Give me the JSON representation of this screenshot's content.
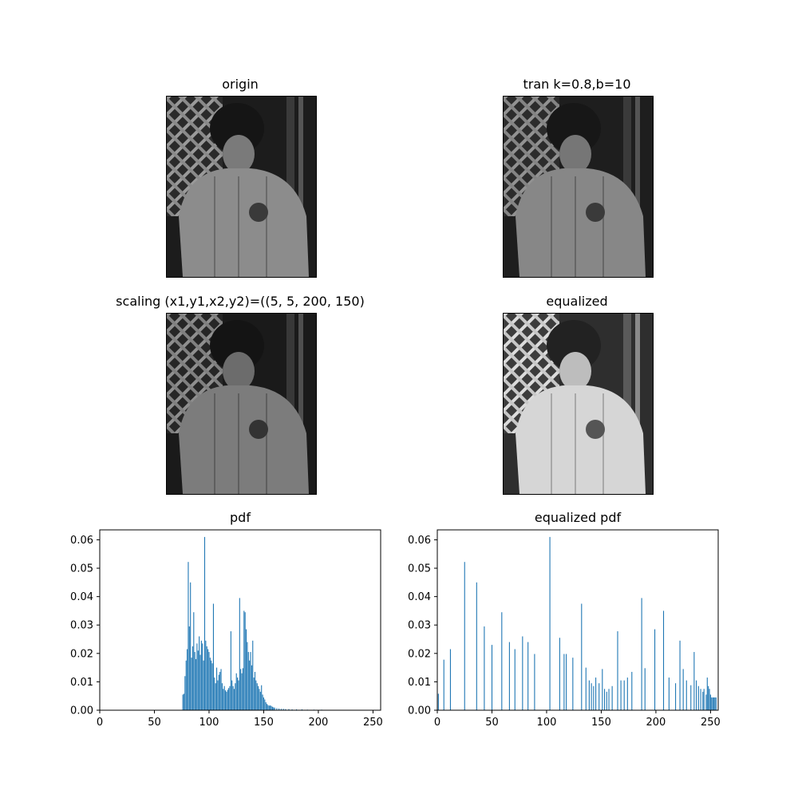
{
  "images": [
    {
      "title": "origin",
      "tone": "normal"
    },
    {
      "title": "tran k=0.8,b=10",
      "tone": "normal"
    },
    {
      "title": "scaling  (x1,y1,x2,y2)=((5, 5, 200, 150)",
      "tone": "normal"
    },
    {
      "title": "equalized",
      "tone": "bright"
    }
  ],
  "chart_data": [
    {
      "type": "bar",
      "title": "pdf",
      "xlim": [
        0,
        257
      ],
      "ylim": [
        0,
        0.0635
      ],
      "xticks": [
        0,
        50,
        100,
        150,
        200,
        250
      ],
      "yticks": [
        "0.00",
        "0.01",
        "0.02",
        "0.03",
        "0.04",
        "0.05",
        "0.06"
      ],
      "bar_color": "#1f77b4",
      "x": [
        76,
        77,
        78,
        79,
        80,
        81,
        82,
        83,
        84,
        85,
        86,
        87,
        88,
        89,
        90,
        91,
        92,
        93,
        94,
        95,
        96,
        97,
        98,
        99,
        100,
        101,
        102,
        103,
        104,
        105,
        106,
        107,
        108,
        109,
        110,
        111,
        112,
        113,
        114,
        115,
        116,
        117,
        118,
        119,
        120,
        121,
        122,
        123,
        124,
        125,
        126,
        127,
        128,
        129,
        130,
        131,
        132,
        133,
        134,
        135,
        136,
        137,
        138,
        139,
        140,
        141,
        142,
        143,
        144,
        145,
        146,
        147,
        148,
        149,
        150,
        151,
        152,
        153,
        154,
        155,
        156,
        157,
        158,
        159,
        160,
        162,
        164,
        166,
        168,
        170,
        173,
        176,
        180,
        185,
        190,
        196,
        203
      ],
      "values": [
        0.0055,
        0.0058,
        0.012,
        0.0175,
        0.0215,
        0.0522,
        0.0295,
        0.045,
        0.0185,
        0.0225,
        0.0345,
        0.0205,
        0.018,
        0.0235,
        0.021,
        0.026,
        0.0195,
        0.0245,
        0.0235,
        0.0175,
        0.061,
        0.0245,
        0.0225,
        0.0215,
        0.0205,
        0.0185,
        0.0175,
        0.0165,
        0.0375,
        0.0115,
        0.0095,
        0.015,
        0.0105,
        0.0125,
        0.0135,
        0.0145,
        0.0095,
        0.0075,
        0.0085,
        0.007,
        0.0065,
        0.0072,
        0.0078,
        0.0085,
        0.0278,
        0.0105,
        0.0085,
        0.0075,
        0.0095,
        0.013,
        0.0115,
        0.0105,
        0.0395,
        0.0145,
        0.013,
        0.0148,
        0.035,
        0.0345,
        0.0285,
        0.024,
        0.0205,
        0.0175,
        0.0205,
        0.0158,
        0.0245,
        0.0115,
        0.0135,
        0.0105,
        0.0095,
        0.0085,
        0.0075,
        0.0065,
        0.0088,
        0.0055,
        0.0045,
        0.0038,
        0.0028,
        0.0022,
        0.0018,
        0.0016,
        0.0017,
        0.0015,
        0.0012,
        0.001,
        0.0009,
        0.0007,
        0.0006,
        0.0005,
        0.0005,
        0.0004,
        0.0004,
        0.0003,
        0.0003,
        0.0003,
        0.0002,
        0.0002,
        0.0002
      ]
    },
    {
      "type": "bar",
      "title": "equalized pdf",
      "xlim": [
        0,
        257
      ],
      "ylim": [
        0,
        0.0635
      ],
      "xticks": [
        0,
        50,
        100,
        150,
        200,
        250
      ],
      "yticks": [
        "0.00",
        "0.01",
        "0.02",
        "0.03",
        "0.04",
        "0.05",
        "0.06"
      ],
      "bar_color": "#1f77b4",
      "x": [
        1,
        6,
        12,
        25,
        36,
        43,
        50,
        59,
        66,
        71,
        78,
        83,
        89,
        103,
        112,
        116,
        118,
        124,
        132,
        136,
        139,
        141,
        143,
        145,
        148,
        151,
        153,
        155,
        157,
        160,
        165,
        168,
        171,
        174,
        178,
        187,
        190,
        199,
        207,
        212,
        218,
        222,
        225,
        228,
        232,
        235,
        237,
        239,
        241,
        243,
        244,
        246,
        247,
        248,
        249,
        250,
        251,
        252,
        253,
        254,
        255
      ],
      "values": [
        0.0058,
        0.0178,
        0.0215,
        0.0522,
        0.045,
        0.0295,
        0.023,
        0.0345,
        0.024,
        0.0215,
        0.026,
        0.024,
        0.0198,
        0.061,
        0.0255,
        0.0198,
        0.0198,
        0.0185,
        0.0375,
        0.015,
        0.0105,
        0.0095,
        0.0085,
        0.0115,
        0.0095,
        0.0145,
        0.0075,
        0.0065,
        0.0075,
        0.0085,
        0.0278,
        0.0105,
        0.0105,
        0.0115,
        0.0135,
        0.0395,
        0.0148,
        0.0285,
        0.035,
        0.0115,
        0.0095,
        0.0245,
        0.0145,
        0.0105,
        0.0088,
        0.0205,
        0.0105,
        0.0085,
        0.0075,
        0.0065,
        0.0075,
        0.0055,
        0.0115,
        0.0085,
        0.0075,
        0.0055,
        0.0045,
        0.0045,
        0.0045,
        0.0045,
        0.0045
      ]
    }
  ]
}
